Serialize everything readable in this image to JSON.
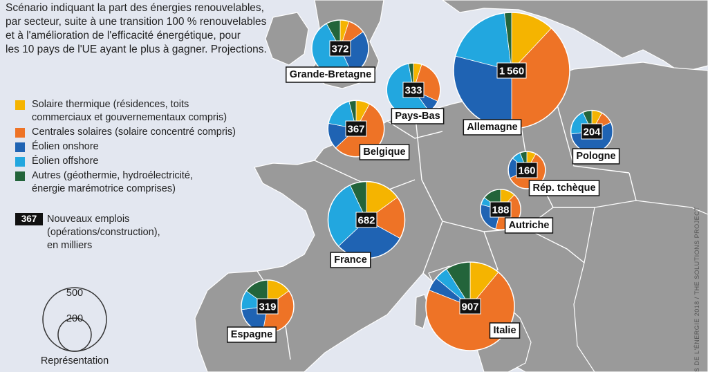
{
  "intro_lines": [
    "Scénario indiquant la part des énergies renouvelables,",
    "par secteur, suite à une transition 100 % renouvelables",
    "et à l'amélioration de l'efficacité énergétique, pour",
    "les 10 pays de l'UE ayant le plus à gagner. Projections."
  ],
  "legend": [
    {
      "key": "solar_thermal",
      "color": "#f5b400",
      "lines": [
        "Solaire thermique (résidences, toits",
        "commerciaux et gouvernementaux compris)"
      ]
    },
    {
      "key": "solar_plants",
      "color": "#ee7326",
      "lines": [
        "Centrales solaires (solaire concentré compris)"
      ]
    },
    {
      "key": "wind_onshore",
      "color": "#1f63b3",
      "lines": [
        "Éolien onshore"
      ]
    },
    {
      "key": "wind_offshore",
      "color": "#22a7df",
      "lines": [
        "Éolien offshore"
      ]
    },
    {
      "key": "other",
      "color": "#23643a",
      "lines": [
        "Autres (géothermie, hydroélectricité,",
        "énergie marémotrice comprises)"
      ]
    }
  ],
  "jobs_legend": {
    "sample": "367",
    "lines": [
      "Nouveaux emplois",
      "(opérations/construction),",
      "en milliers"
    ]
  },
  "size_legend": {
    "large": "500",
    "small": "200",
    "caption": "Représentation"
  },
  "credit": "S DE L'ÉNERGIE 2018 / THE SOLUTIONS PROJECT",
  "chart_data": {
    "type": "pie",
    "unit": "milliers d'emplois",
    "slice_order": [
      "solar_thermal",
      "solar_plants",
      "wind_onshore",
      "wind_offshore",
      "other"
    ],
    "countries": [
      {
        "name": "Grande-Bretagne",
        "jobs": 372,
        "shares": [
          0.05,
          0.1,
          0.28,
          0.49,
          0.08
        ]
      },
      {
        "name": "Pays-Bas",
        "jobs": 333,
        "shares": [
          0.05,
          0.27,
          0.08,
          0.57,
          0.03
        ]
      },
      {
        "name": "Allemagne",
        "jobs": 1560,
        "shares": [
          0.12,
          0.38,
          0.29,
          0.19,
          0.02
        ]
      },
      {
        "name": "Belgique",
        "jobs": 367,
        "shares": [
          0.08,
          0.55,
          0.15,
          0.18,
          0.04
        ]
      },
      {
        "name": "Pologne",
        "jobs": 204,
        "shares": [
          0.08,
          0.1,
          0.55,
          0.2,
          0.07
        ]
      },
      {
        "name": "Rép. tchèque",
        "jobs": 160,
        "shares": [
          0.08,
          0.6,
          0.18,
          0.08,
          0.06
        ]
      },
      {
        "name": "Autriche",
        "jobs": 188,
        "shares": [
          0.12,
          0.42,
          0.25,
          0.06,
          0.15
        ]
      },
      {
        "name": "France",
        "jobs": 682,
        "shares": [
          0.15,
          0.18,
          0.3,
          0.3,
          0.07
        ]
      },
      {
        "name": "Espagne",
        "jobs": 319,
        "shares": [
          0.15,
          0.38,
          0.2,
          0.12,
          0.15
        ]
      },
      {
        "name": "Italie",
        "jobs": 907,
        "shares": [
          0.11,
          0.7,
          0.05,
          0.05,
          0.09
        ]
      }
    ]
  }
}
